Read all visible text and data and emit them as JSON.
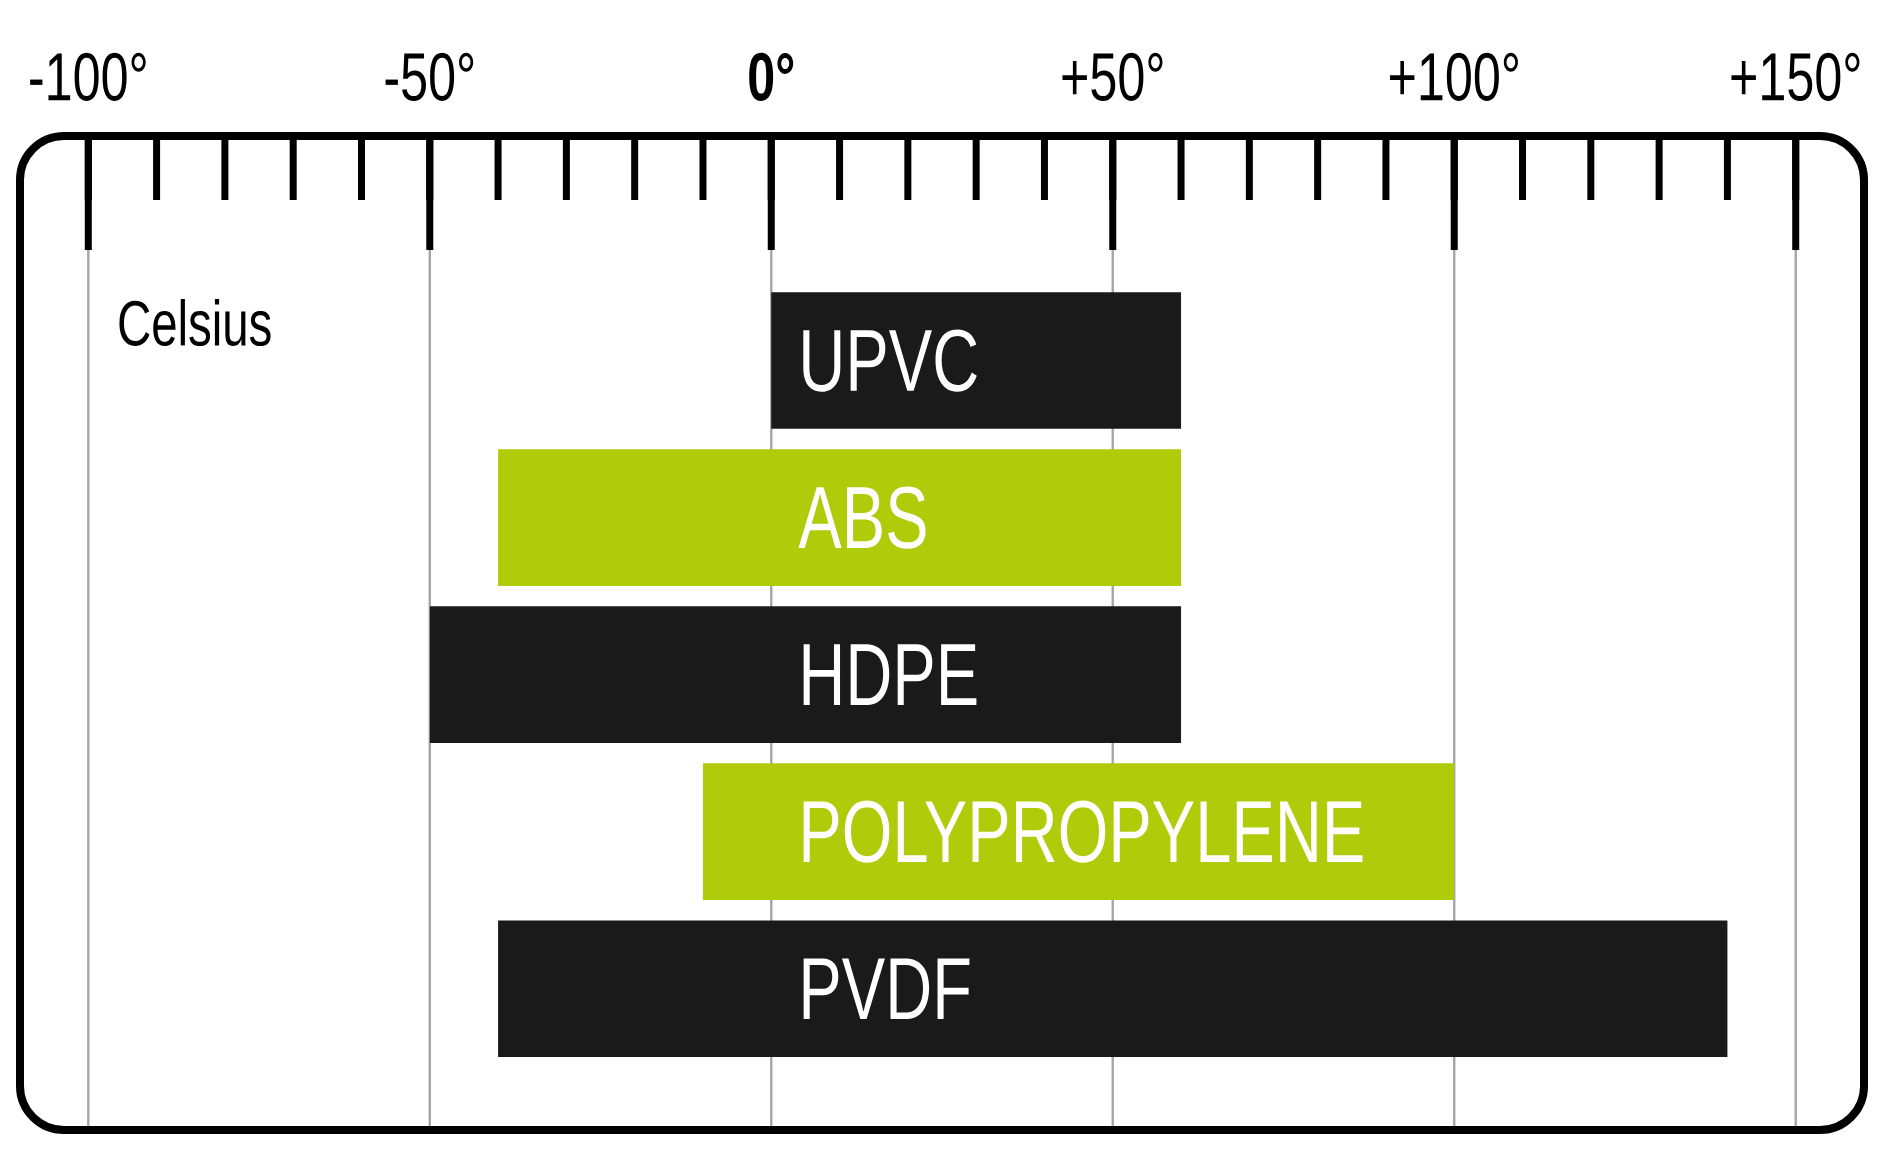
{
  "chart_data": {
    "type": "bar",
    "orientation": "horizontal",
    "categories": [
      "UPVC",
      "ABS",
      "HDPE",
      "POLYPROPYLENE",
      "PVDF"
    ],
    "base": [
      0,
      -40,
      -50,
      -10,
      -40
    ],
    "values": [
      60,
      100,
      110,
      110,
      180
    ],
    "colors": [
      "#1a1a1a",
      "#b0cb0a",
      "#1a1a1a",
      "#b0cb0a",
      "#1a1a1a"
    ],
    "xlim": [
      -110,
      160
    ],
    "xticks": [
      {
        "value": -100,
        "label": "-100°"
      },
      {
        "value": -50,
        "label": "-50°"
      },
      {
        "value": 0,
        "label": "**0°**"
      },
      {
        "value": 50,
        "label": "+50°"
      },
      {
        "value": 100,
        "label": "+100°"
      },
      {
        "value": 150,
        "label": "+150°"
      }
    ],
    "grid": "x",
    "annotations": [
      "Celsius"
    ]
  }
}
